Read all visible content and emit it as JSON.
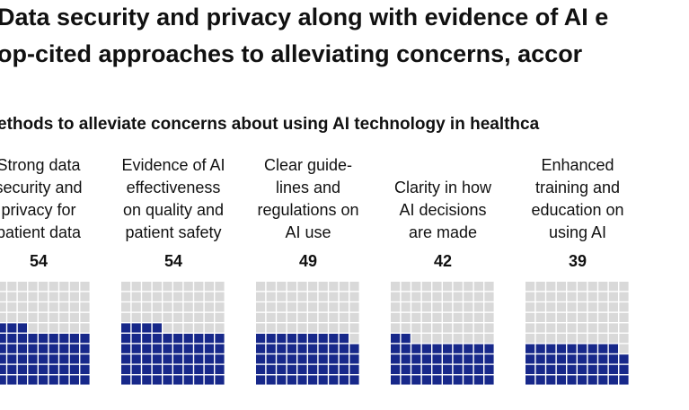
{
  "chart_data": {
    "type": "waffle",
    "title": [
      "Data security and privacy along with evidence of AI e",
      "op-cited approaches to alleviating concerns, accor"
    ],
    "subtitle": "ethods to alleviate concerns about using AI technology in healthca",
    "categories": [
      [
        "Strong data",
        "security and",
        "privacy for",
        "patient data"
      ],
      [
        "Evidence of AI",
        "effectiveness",
        "on quality and",
        "patient safety"
      ],
      [
        "Clear guide-",
        "lines and",
        "regulations on",
        "AI use"
      ],
      [
        "Clarity in how",
        "AI decisions",
        "are made"
      ],
      [
        "Enhanced",
        "training and",
        "education on",
        "using AI"
      ]
    ],
    "values": [
      54,
      54,
      49,
      42,
      39
    ],
    "color": "#17288a",
    "empty_color": "#d9d9d9"
  }
}
